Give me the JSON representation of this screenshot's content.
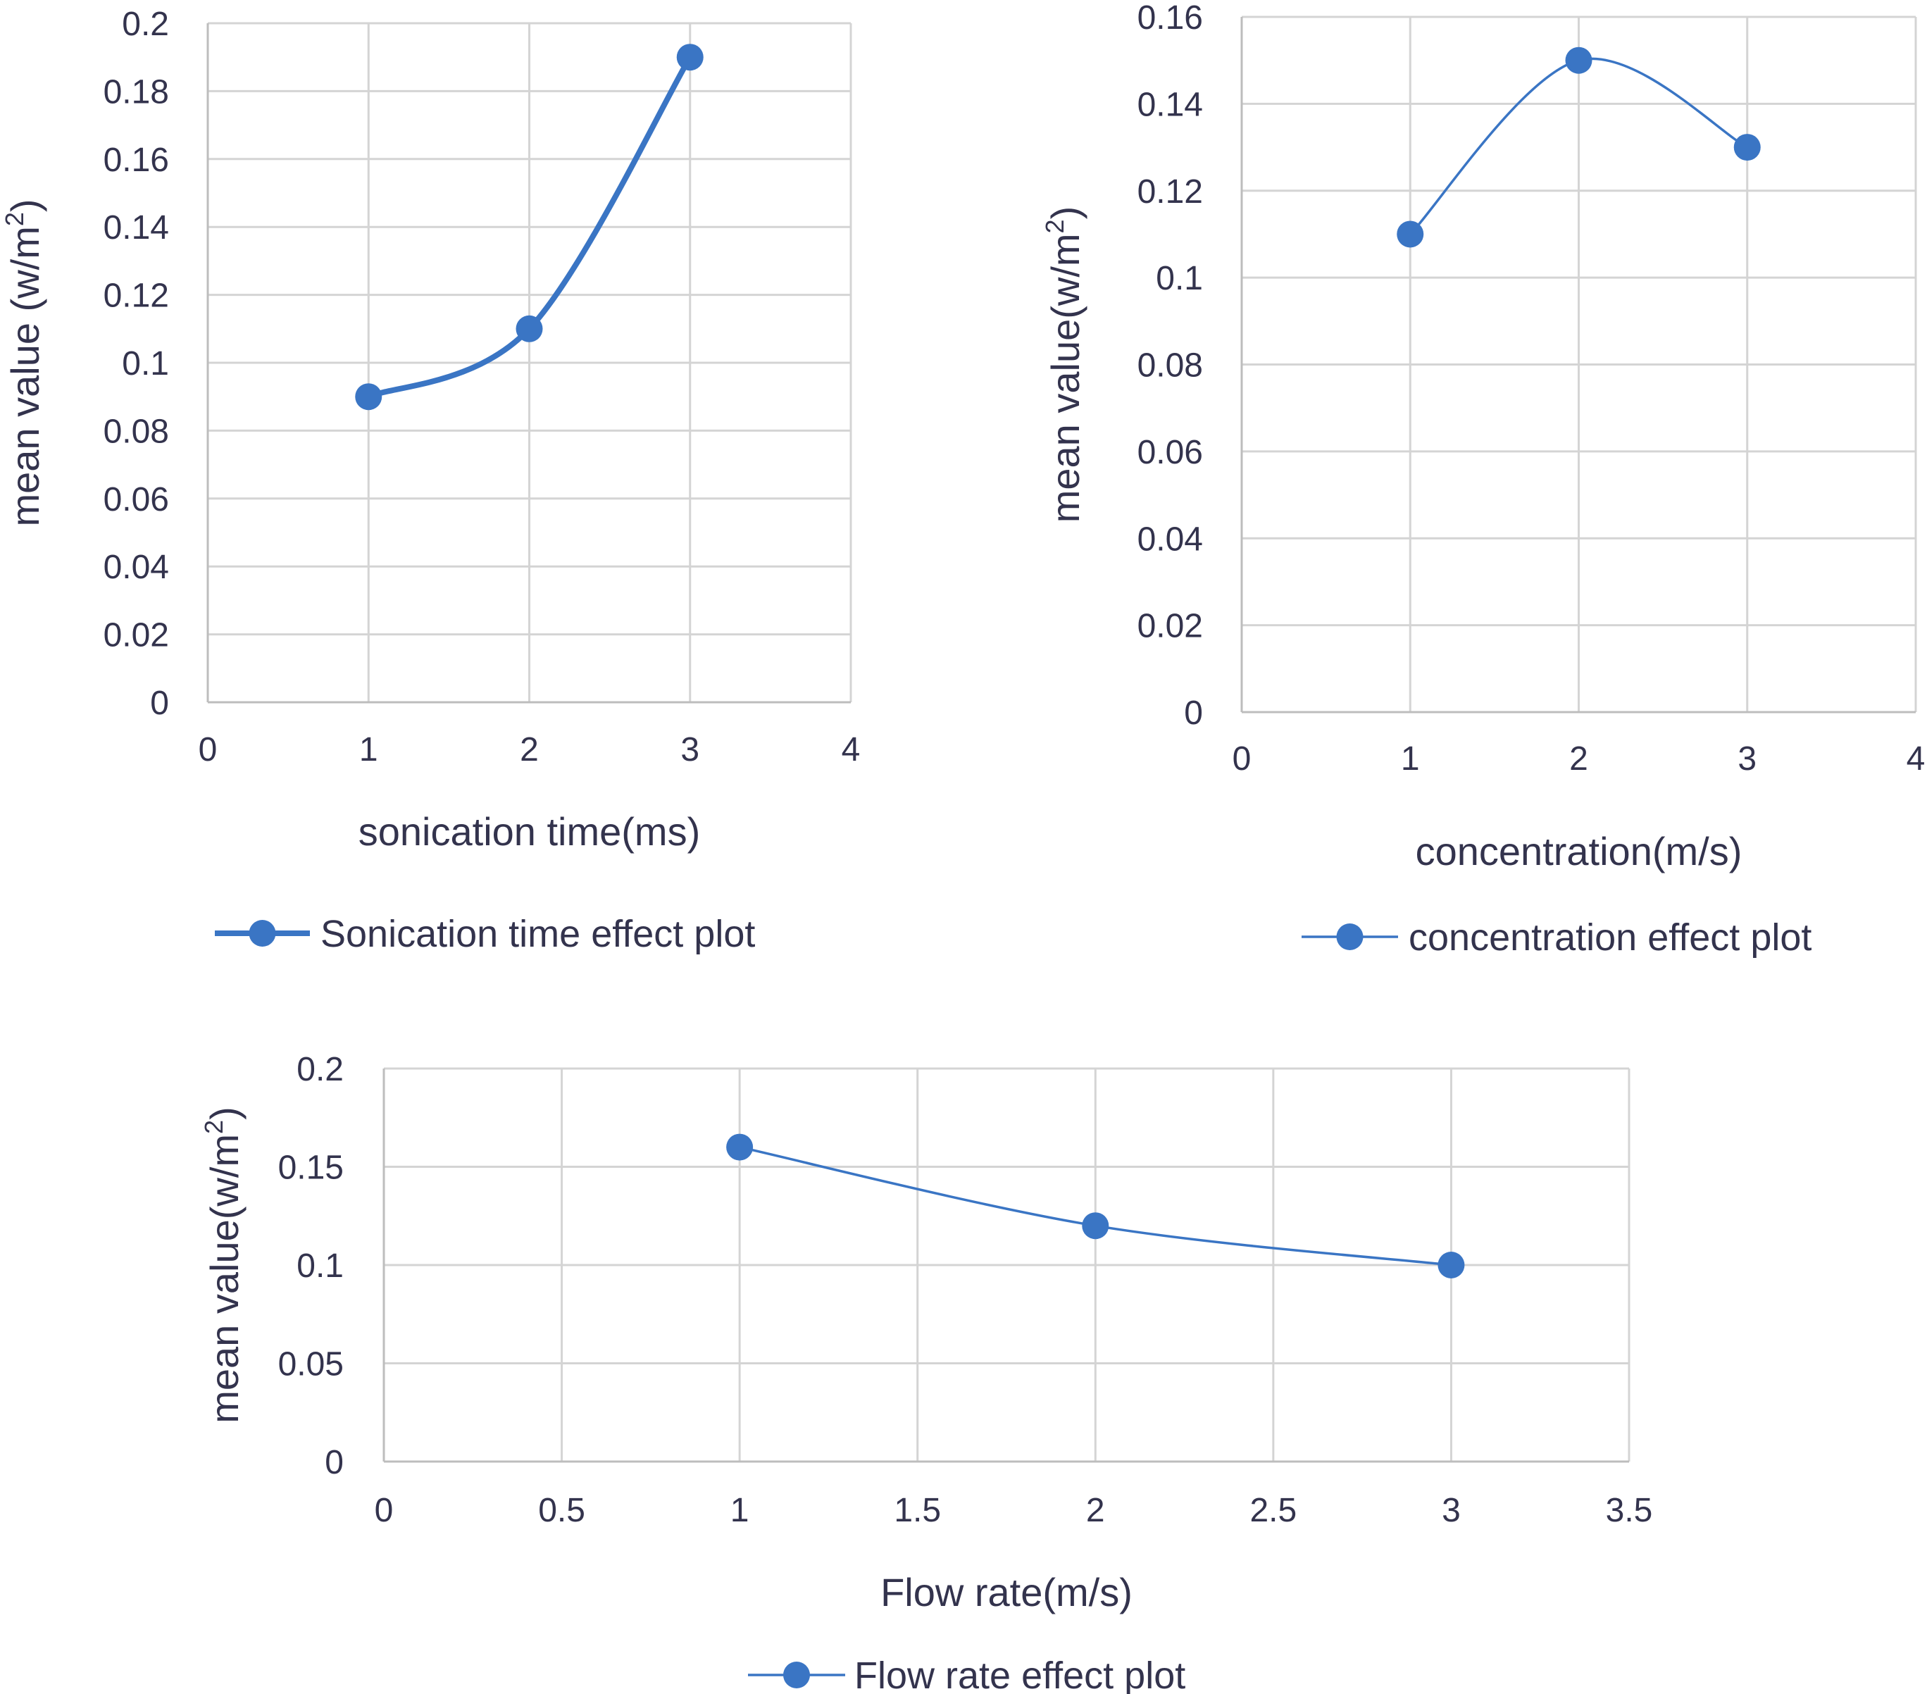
{
  "chart_data": [
    {
      "type": "line",
      "xlabel": "sonication time(ms)",
      "ylabel": "mean value (w/m",
      "ylabel_sup": "2",
      "ylabel_close": ")",
      "xlim": [
        0,
        4
      ],
      "ylim": [
        0,
        0.2
      ],
      "x_ticks": [
        "0",
        "1",
        "2",
        "3",
        "4"
      ],
      "y_ticks": [
        "0",
        "0.02",
        "0.04",
        "0.06",
        "0.08",
        "0.1",
        "0.12",
        "0.14",
        "0.16",
        "0.18",
        "0.2"
      ],
      "grid": true,
      "legend_position": "bottom",
      "series": [
        {
          "name": "Sonication time effect plot",
          "x": [
            1,
            2,
            3
          ],
          "y": [
            0.09,
            0.11,
            0.19
          ],
          "color": "#3a75c4"
        }
      ]
    },
    {
      "type": "line",
      "xlabel": "concentration(m/s)",
      "ylabel": "mean value(w/m",
      "ylabel_sup": "2",
      "ylabel_close": ")",
      "xlim": [
        0,
        4
      ],
      "ylim": [
        0,
        0.16
      ],
      "x_ticks": [
        "0",
        "1",
        "2",
        "3",
        "4"
      ],
      "y_ticks": [
        "0",
        "0.02",
        "0.04",
        "0.06",
        "0.08",
        "0.1",
        "0.12",
        "0.14",
        "0.16"
      ],
      "grid": true,
      "legend_position": "bottom",
      "series": [
        {
          "name": "concentration effect plot",
          "x": [
            1,
            2,
            3
          ],
          "y": [
            0.11,
            0.15,
            0.13
          ],
          "color": "#3a75c4"
        }
      ]
    },
    {
      "type": "line",
      "xlabel": "Flow rate(m/s)",
      "ylabel": "mean value(w/m",
      "ylabel_sup": "2",
      "ylabel_close": ")",
      "xlim": [
        0,
        3.5
      ],
      "ylim": [
        0,
        0.2
      ],
      "x_ticks": [
        "0",
        "0.5",
        "1",
        "1.5",
        "2",
        "2.5",
        "3",
        "3.5"
      ],
      "y_ticks": [
        "0",
        "0.05",
        "0.1",
        "0.15",
        "0.2"
      ],
      "grid": true,
      "legend_position": "bottom",
      "series": [
        {
          "name": "Flow rate effect plot",
          "x": [
            1,
            2,
            3
          ],
          "y": [
            0.16,
            0.12,
            0.1
          ],
          "color": "#3a75c4"
        }
      ]
    }
  ]
}
